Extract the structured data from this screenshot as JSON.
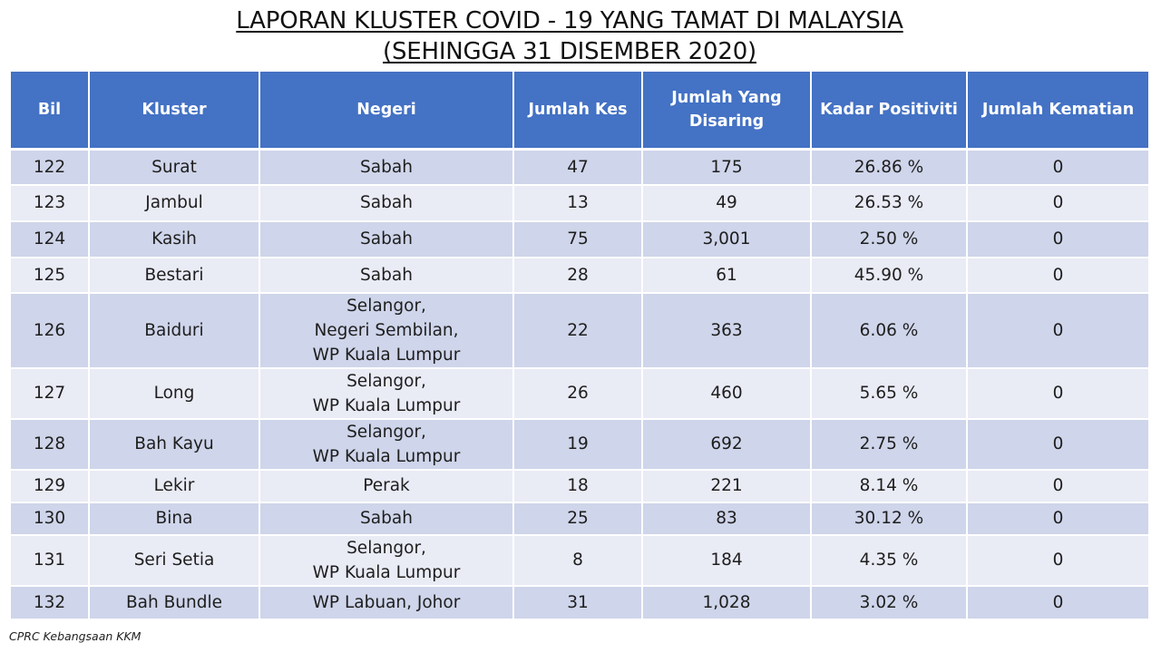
{
  "title": {
    "line1": "LAPORAN KLUSTER COVID - 19 YANG TAMAT DI MALAYSIA",
    "line2": "(SEHINGGA 31 DISEMBER 2020)"
  },
  "table": {
    "headers": {
      "bil": "Bil",
      "kluster": "Kluster",
      "negeri": "Negeri",
      "jumlah_kes": "Jumlah Kes",
      "jumlah_disaring_1": "Jumlah Yang",
      "jumlah_disaring_2": "Disaring",
      "kadar_positiviti": "Kadar Positiviti",
      "jumlah_kematian": "Jumlah Kematian"
    },
    "rows": [
      {
        "bil": "122",
        "kluster": "Surat",
        "negeri": [
          "Sabah"
        ],
        "jumlah_kes": "47",
        "jumlah_disaring": "175",
        "kadar_positiviti": "26.86 %",
        "jumlah_kematian": "0"
      },
      {
        "bil": "123",
        "kluster": "Jambul",
        "negeri": [
          "Sabah"
        ],
        "jumlah_kes": "13",
        "jumlah_disaring": "49",
        "kadar_positiviti": "26.53 %",
        "jumlah_kematian": "0"
      },
      {
        "bil": "124",
        "kluster": "Kasih",
        "negeri": [
          "Sabah"
        ],
        "jumlah_kes": "75",
        "jumlah_disaring": "3,001",
        "kadar_positiviti": "2.50 %",
        "jumlah_kematian": "0"
      },
      {
        "bil": "125",
        "kluster": "Bestari",
        "negeri": [
          "Sabah"
        ],
        "jumlah_kes": "28",
        "jumlah_disaring": "61",
        "kadar_positiviti": "45.90 %",
        "jumlah_kematian": "0"
      },
      {
        "bil": "126",
        "kluster": "Baiduri",
        "negeri": [
          "Selangor,",
          "Negeri Sembilan,",
          "WP Kuala Lumpur"
        ],
        "jumlah_kes": "22",
        "jumlah_disaring": "363",
        "kadar_positiviti": "6.06 %",
        "jumlah_kematian": "0"
      },
      {
        "bil": "127",
        "kluster": "Long",
        "negeri": [
          "Selangor,",
          "WP Kuala Lumpur"
        ],
        "jumlah_kes": "26",
        "jumlah_disaring": "460",
        "kadar_positiviti": "5.65 %",
        "jumlah_kematian": "0"
      },
      {
        "bil": "128",
        "kluster": "Bah Kayu",
        "negeri": [
          "Selangor,",
          "WP Kuala Lumpur"
        ],
        "jumlah_kes": "19",
        "jumlah_disaring": "692",
        "kadar_positiviti": "2.75 %",
        "jumlah_kematian": "0"
      },
      {
        "bil": "129",
        "kluster": "Lekir",
        "negeri": [
          "Perak"
        ],
        "jumlah_kes": "18",
        "jumlah_disaring": "221",
        "kadar_positiviti": "8.14 %",
        "jumlah_kematian": "0"
      },
      {
        "bil": "130",
        "kluster": "Bina",
        "negeri": [
          "Sabah"
        ],
        "jumlah_kes": "25",
        "jumlah_disaring": "83",
        "kadar_positiviti": "30.12 %",
        "jumlah_kematian": "0"
      },
      {
        "bil": "131",
        "kluster": "Seri Setia",
        "negeri": [
          "Selangor,",
          "WP Kuala Lumpur"
        ],
        "jumlah_kes": "8",
        "jumlah_disaring": "184",
        "kadar_positiviti": "4.35 %",
        "jumlah_kematian": "0"
      },
      {
        "bil": "132",
        "kluster": "Bah Bundle",
        "negeri": [
          "WP Labuan, Johor"
        ],
        "jumlah_kes": "31",
        "jumlah_disaring": "1,028",
        "kadar_positiviti": "3.02 %",
        "jumlah_kematian": "0"
      }
    ]
  },
  "footer": {
    "source": "CPRC Kebangsaan KKM"
  },
  "colors": {
    "header_bg": "#4472c4",
    "row_odd": "#cfd5ea",
    "row_even": "#e9ebf5"
  }
}
